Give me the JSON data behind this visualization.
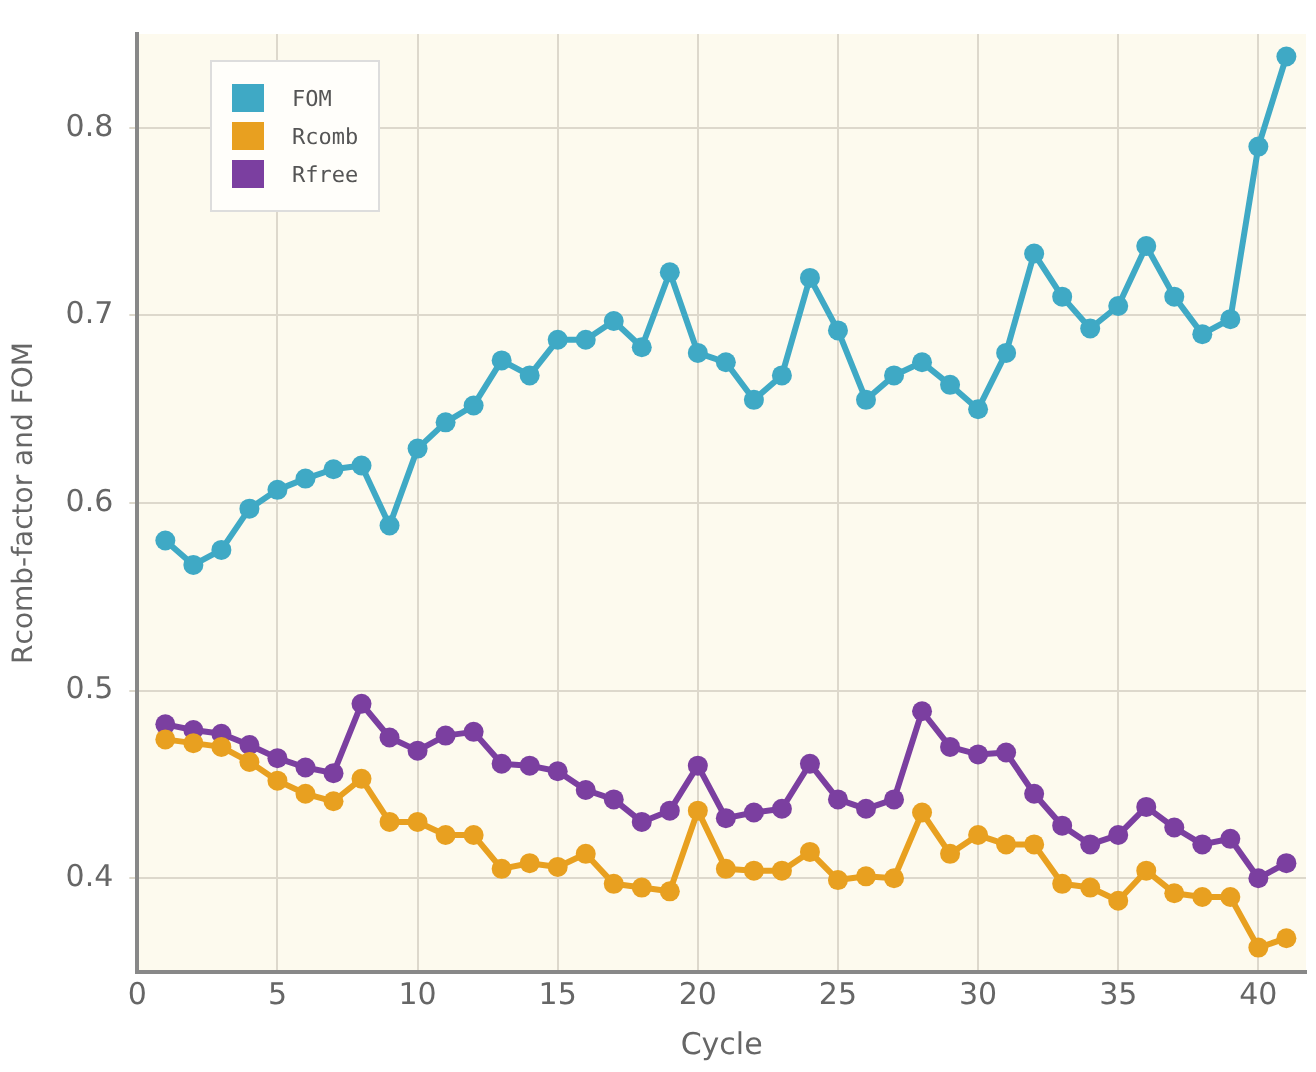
{
  "chart_data": {
    "type": "line",
    "xlabel": "Cycle",
    "ylabel": "Rcomb-factor and FOM",
    "x": [
      1,
      2,
      3,
      4,
      5,
      6,
      7,
      8,
      9,
      10,
      11,
      12,
      13,
      14,
      15,
      16,
      17,
      18,
      19,
      20,
      21,
      22,
      23,
      24,
      25,
      26,
      27,
      28,
      29,
      30,
      31,
      32,
      33,
      34,
      35,
      36,
      37,
      38,
      39,
      40,
      41
    ],
    "series": [
      {
        "name": "FOM",
        "color": "#3fa9c5",
        "values": [
          0.58,
          0.567,
          0.575,
          0.597,
          0.607,
          0.613,
          0.618,
          0.62,
          0.588,
          0.629,
          0.643,
          0.652,
          0.676,
          0.668,
          0.687,
          0.687,
          0.697,
          0.683,
          0.723,
          0.68,
          0.675,
          0.655,
          0.668,
          0.72,
          0.692,
          0.655,
          0.668,
          0.675,
          0.663,
          0.65,
          0.68,
          0.733,
          0.71,
          0.693,
          0.705,
          0.737,
          0.71,
          0.69,
          0.698,
          0.79,
          0.838
        ]
      },
      {
        "name": "Rcomb",
        "color": "#e8a020",
        "values": [
          0.474,
          0.472,
          0.47,
          0.462,
          0.452,
          0.445,
          0.441,
          0.453,
          0.43,
          0.43,
          0.423,
          0.423,
          0.405,
          0.408,
          0.406,
          0.413,
          0.397,
          0.395,
          0.393,
          0.436,
          0.405,
          0.404,
          0.404,
          0.414,
          0.399,
          0.401,
          0.4,
          0.435,
          0.413,
          0.423,
          0.418,
          0.418,
          0.397,
          0.395,
          0.388,
          0.404,
          0.392,
          0.39,
          0.39,
          0.363,
          0.368
        ]
      },
      {
        "name": "Rfree",
        "color": "#7b3fa0",
        "values": [
          0.482,
          0.479,
          0.477,
          0.471,
          0.464,
          0.459,
          0.456,
          0.493,
          0.475,
          0.468,
          0.476,
          0.478,
          0.461,
          0.46,
          0.457,
          0.447,
          0.442,
          0.43,
          0.436,
          0.46,
          0.432,
          0.435,
          0.437,
          0.461,
          0.442,
          0.437,
          0.442,
          0.489,
          0.47,
          0.466,
          0.467,
          0.445,
          0.428,
          0.418,
          0.423,
          0.438,
          0.427,
          0.418,
          0.421,
          0.4,
          0.408
        ]
      }
    ],
    "xlim": [
      0,
      41.7
    ],
    "xticks": [
      0,
      5,
      10,
      15,
      20,
      25,
      30,
      35,
      40
    ],
    "ylim": [
      0.35,
      0.85
    ],
    "yticks": [
      0.4,
      0.5,
      0.6,
      0.7,
      0.8
    ],
    "grid": true,
    "legend": "top left",
    "marker": "circle",
    "line_style": "solid"
  }
}
